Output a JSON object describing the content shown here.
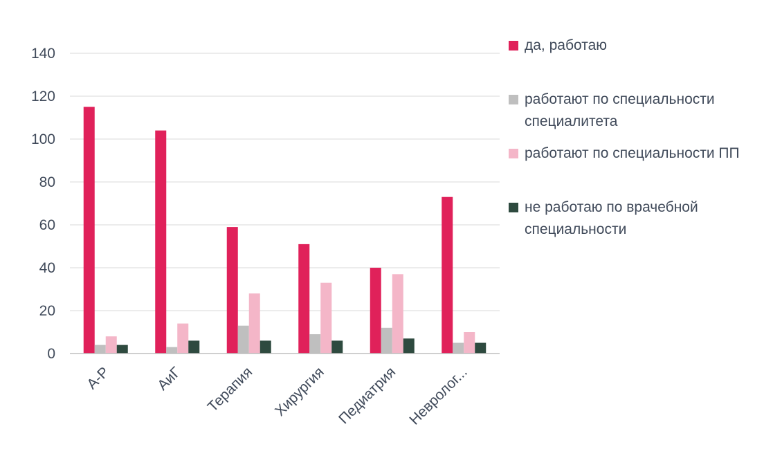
{
  "chart_data": {
    "type": "bar",
    "categories": [
      "А-Р",
      "АиГ",
      "Терапия",
      "Хирургия",
      "Педиатрия",
      "Невролог..."
    ],
    "series": [
      {
        "name": "да, работаю",
        "color": "#e0215a",
        "values": [
          115,
          104,
          59,
          51,
          40,
          73
        ]
      },
      {
        "name": "работают по специальности специалитета",
        "color": "#bfbfbf",
        "values": [
          4,
          3,
          13,
          9,
          12,
          5
        ]
      },
      {
        "name": "работают по специальности ПП",
        "color": "#f4b6c8",
        "values": [
          8,
          14,
          28,
          33,
          37,
          10
        ]
      },
      {
        "name": "не работаю по врачебной специальности",
        "color": "#2e4a3f",
        "values": [
          4,
          6,
          6,
          6,
          7,
          5
        ]
      }
    ],
    "yticks": [
      "0",
      "20",
      "40",
      "60",
      "80",
      "100",
      "120",
      "140"
    ],
    "ylim": [
      0,
      140
    ],
    "grid": true,
    "legend": "right"
  }
}
